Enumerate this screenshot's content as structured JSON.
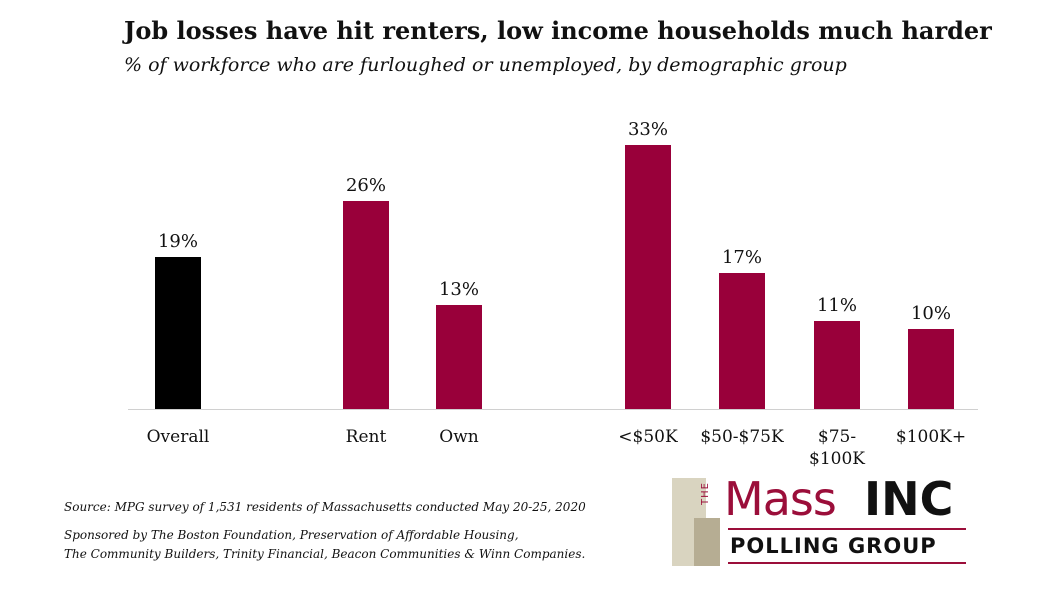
{
  "header": {
    "title": "Job losses have hit renters, low income households much harder",
    "subtitle": "% of workforce who are furloughed or unemployed, by demographic group"
  },
  "chart_data": {
    "type": "bar",
    "title": "Job losses have hit renters, low income households much harder",
    "subtitle": "% of workforce who are furloughed or unemployed, by demographic group",
    "xlabel": "",
    "ylabel": "",
    "ylim": [
      0,
      35
    ],
    "grid": false,
    "legend": "none",
    "categories": [
      "Overall",
      "Rent",
      "Own",
      "<$50K",
      "$50-$75K",
      "$75-\n$100K",
      "$100K+"
    ],
    "values": [
      19,
      26,
      13,
      33,
      17,
      11,
      10
    ],
    "data_labels": [
      "19%",
      "26%",
      "13%",
      "33%",
      "17%",
      "11%",
      "10%"
    ],
    "groups": [
      [
        "Overall"
      ],
      [
        "Rent",
        "Own"
      ],
      [
        "<$50K",
        "$50-$75K",
        "$75-\n$100K",
        "$100K+"
      ]
    ],
    "colors": [
      "#000000",
      "#99003a",
      "#99003a",
      "#99003a",
      "#99003a",
      "#99003a",
      "#99003a"
    ]
  },
  "footer": {
    "source": "Source: MPG survey of 1,531 residents of Massachusetts conducted May 20-25, 2020",
    "sponsor_line1": "Sponsored by The Boston Foundation, Preservation of Affordable Housing,",
    "sponsor_line2": "The Community Builders, Trinity Financial, Beacon Communities & Winn Companies."
  },
  "logo": {
    "the": "THE",
    "mass": "Mass",
    "inc": "INC",
    "polling": "POLLING GROUP",
    "accent_color": "#9b0e3a"
  }
}
